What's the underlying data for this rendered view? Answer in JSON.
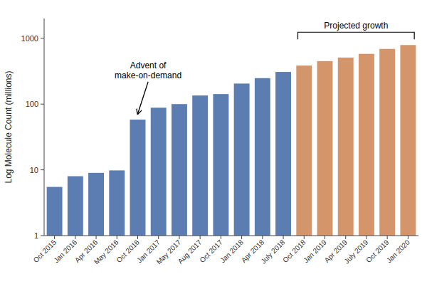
{
  "chart_data": {
    "type": "bar",
    "categories": [
      "Oct 2015",
      "Jan 2016",
      "Apr 2016",
      "May 2016",
      "Oct 2016",
      "Jan 2017",
      "May 2017",
      "Aug 2017",
      "Oct 2017",
      "Jan 2018",
      "Apr 2018",
      "July 2018",
      "Oct 2018",
      "Jan 2019",
      "Apr 2019",
      "July 2019",
      "Oct 2019",
      "Jan 2020"
    ],
    "values": [
      5.5,
      8.0,
      9.0,
      9.8,
      58,
      88,
      100,
      135,
      142,
      205,
      248,
      308,
      385,
      450,
      510,
      580,
      690,
      790
    ],
    "colors": [
      "#5b7db1",
      "#5b7db1",
      "#5b7db1",
      "#5b7db1",
      "#5b7db1",
      "#5b7db1",
      "#5b7db1",
      "#5b7db1",
      "#5b7db1",
      "#5b7db1",
      "#5b7db1",
      "#5b7db1",
      "#d4956a",
      "#d4956a",
      "#d4956a",
      "#d4956a",
      "#d4956a",
      "#d4956a"
    ],
    "y_label": "Log Molecule Count (millions)",
    "log": "y",
    "ylim": [
      1,
      2000
    ],
    "yticks": [
      1,
      10,
      100,
      1000
    ],
    "grid": false,
    "annotations": [
      {
        "text": "Advent of\nmake-on-demand",
        "at": "Oct 2016"
      },
      {
        "text": "Projected growth",
        "from": "Oct 2018",
        "to": "Jan 2020"
      }
    ]
  }
}
